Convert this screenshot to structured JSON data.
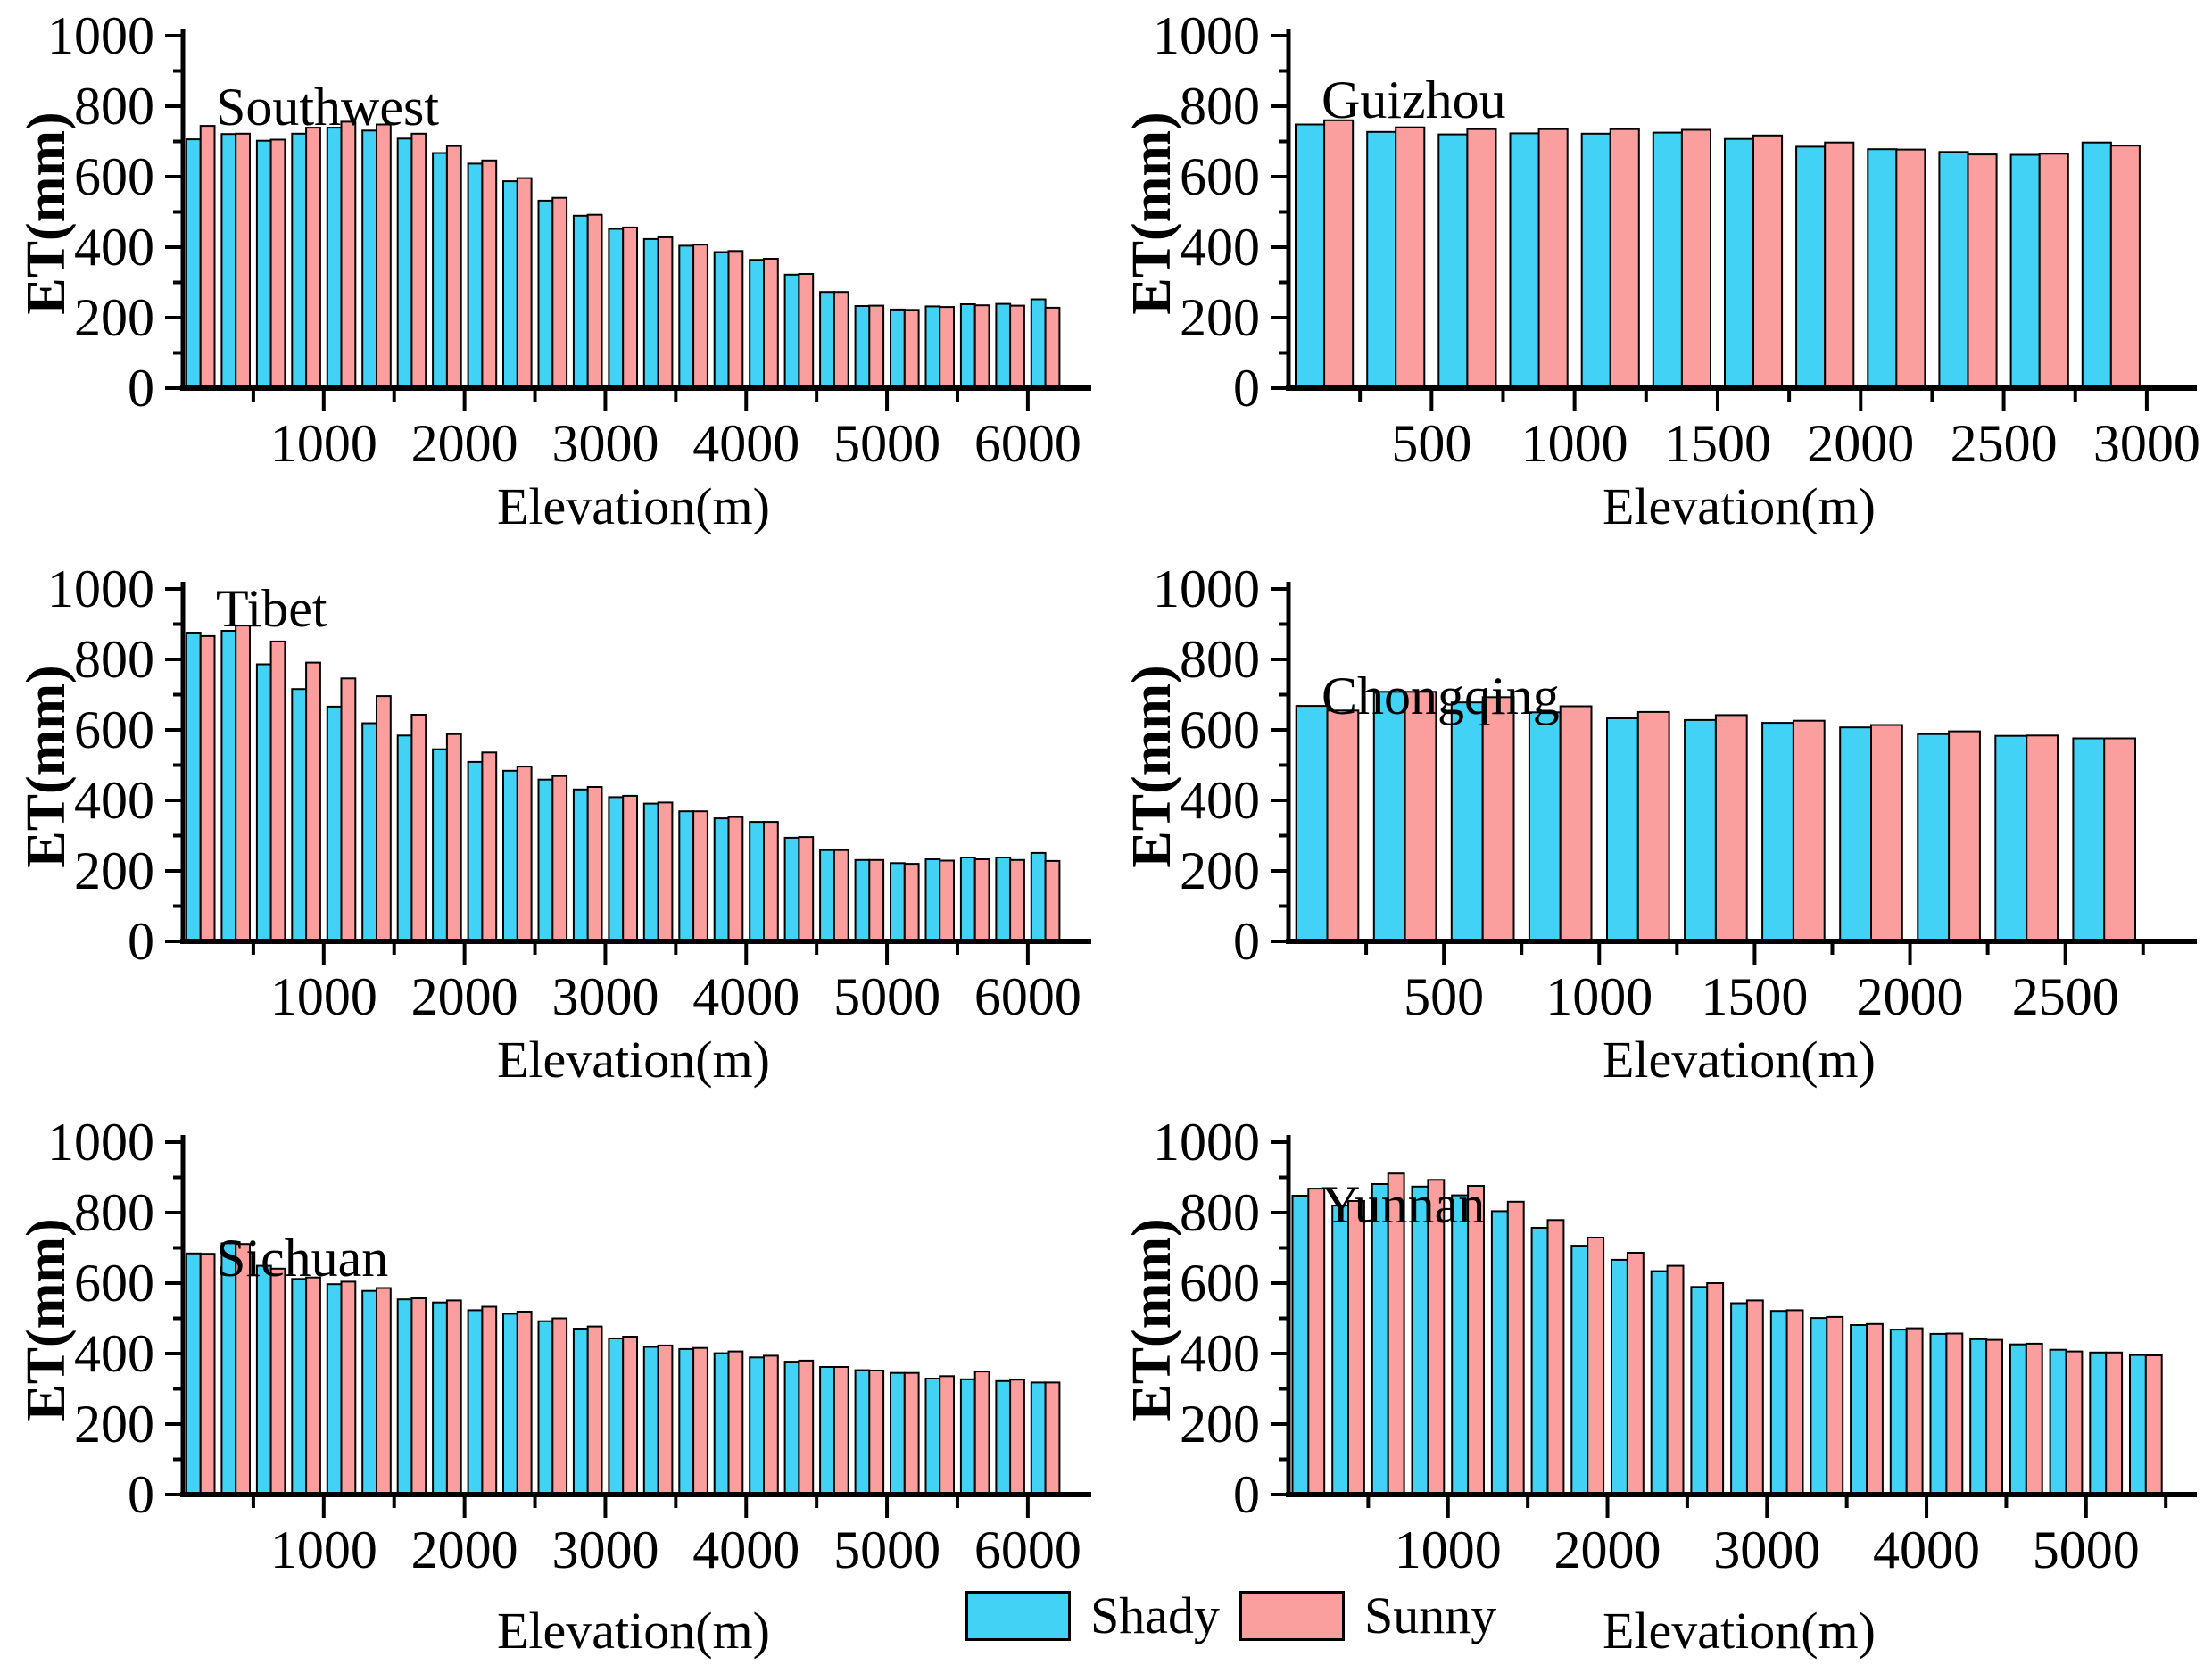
{
  "figure": {
    "background": "#ffffff",
    "axis_color": "#000000",
    "ylabel": "ET(mm)",
    "xlabel": "Elevation(m)"
  },
  "legend": {
    "items": [
      {
        "label": "Shady",
        "color": "#41d2f5"
      },
      {
        "label": "Sunny",
        "color": "#fb9e9e"
      }
    ]
  },
  "chart_data": {
    "type": "bar",
    "legend_position": "bottom-center",
    "grid": false,
    "panels": [
      {
        "title": "Southwest",
        "xlabel": "Elevation(m)",
        "ylabel": "ET(mm)",
        "type": "bar",
        "bin_width_m": 250,
        "xlim": [
          0,
          6400
        ],
        "ylim": [
          0,
          1000
        ],
        "yticks": [
          0,
          200,
          400,
          600,
          800,
          1000
        ],
        "xticks_major": [
          1000,
          2000,
          3000,
          4000,
          5000,
          6000
        ],
        "xtick_minor_step": 500,
        "elevation_bin_ends_m": [
          250,
          500,
          750,
          1000,
          1250,
          1500,
          1750,
          2000,
          2250,
          2500,
          2750,
          3000,
          3250,
          3500,
          3750,
          4000,
          4250,
          4500,
          4750,
          5000,
          5250,
          5500,
          5750,
          6000,
          6250
        ],
        "series": [
          {
            "name": "Shady",
            "color": "#41d2f5",
            "values": [
              706,
              721,
              702,
              722,
              739,
              731,
              708,
              667,
              637,
              587,
              532,
              489,
              452,
              423,
              404,
              386,
              364,
              322,
              273,
              233,
              223,
              232,
              238,
              239,
              252
            ]
          },
          {
            "name": "Sunny",
            "color": "#fb9e9e",
            "values": [
              744,
              722,
              705,
              739,
              756,
              748,
              722,
              687,
              646,
              596,
              540,
              492,
              456,
              428,
              407,
              389,
              367,
              324,
              273,
              234,
              222,
              230,
              235,
              234,
              228
            ]
          }
        ]
      },
      {
        "title": "Guizhou",
        "xlabel": "Elevation(m)",
        "ylabel": "ET(mm)",
        "type": "bar",
        "bin_width_m": 250,
        "xlim": [
          0,
          3150
        ],
        "ylim": [
          0,
          1000
        ],
        "yticks": [
          0,
          200,
          400,
          600,
          800,
          1000
        ],
        "xticks_major": [
          500,
          1000,
          1500,
          2000,
          2500,
          3000
        ],
        "xtick_minor_step": 250,
        "elevation_bin_ends_m": [
          250,
          500,
          750,
          1000,
          1250,
          1500,
          1750,
          2000,
          2250,
          2500,
          2750,
          3000
        ],
        "series": [
          {
            "name": "Shady",
            "color": "#41d2f5",
            "values": [
              748,
              727,
              720,
              723,
              722,
              725,
              707,
              685,
              678,
              670,
              662,
              697
            ]
          },
          {
            "name": "Sunny",
            "color": "#fb9e9e",
            "values": [
              760,
              740,
              735,
              735,
              735,
              733,
              717,
              697,
              677,
              663,
              665,
              688
            ]
          }
        ]
      },
      {
        "title": "Tibet",
        "xlabel": "Elevation(m)",
        "ylabel": "ET(mm)",
        "type": "bar",
        "bin_width_m": 250,
        "xlim": [
          0,
          6400
        ],
        "ylim": [
          0,
          1000
        ],
        "yticks": [
          0,
          200,
          400,
          600,
          800,
          1000
        ],
        "xticks_major": [
          1000,
          2000,
          3000,
          4000,
          5000,
          6000
        ],
        "xtick_minor_step": 500,
        "elevation_bin_ends_m": [
          250,
          500,
          750,
          1000,
          1250,
          1500,
          1750,
          2000,
          2250,
          2500,
          2750,
          3000,
          3250,
          3500,
          3750,
          4000,
          4250,
          4500,
          4750,
          5000,
          5250,
          5500,
          5750,
          6000,
          6250
        ],
        "series": [
          {
            "name": "Shady",
            "color": "#41d2f5",
            "values": [
              876,
              881,
              786,
              716,
              666,
              619,
              584,
              545,
              509,
              484,
              459,
              431,
              409,
              391,
              369,
              349,
              339,
              294,
              259,
              231,
              222,
              233,
              238,
              238,
              251
            ]
          },
          {
            "name": "Sunny",
            "color": "#fb9e9e",
            "values": [
              866,
              896,
              851,
              791,
              746,
              696,
              643,
              588,
              536,
              496,
              469,
              438,
              413,
              394,
              369,
              353,
              339,
              296,
              259,
              231,
              220,
              229,
              233,
              231,
              228
            ]
          }
        ]
      },
      {
        "title": "Chongqing",
        "xlabel": "Elevation(m)",
        "ylabel": "ET(mm)",
        "type": "bar",
        "bin_width_m": 250,
        "xlim": [
          0,
          2900
        ],
        "ylim": [
          0,
          1000
        ],
        "yticks": [
          0,
          200,
          400,
          600,
          800,
          1000
        ],
        "xticks_major": [
          500,
          1000,
          1500,
          2000,
          2500
        ],
        "xtick_minor_step": 250,
        "elevation_bin_ends_m": [
          250,
          500,
          750,
          1000,
          1250,
          1500,
          1750,
          2000,
          2250,
          2500,
          2750
        ],
        "series": [
          {
            "name": "Shady",
            "color": "#41d2f5",
            "values": [
              668,
              708,
              678,
              650,
              633,
              628,
              620,
              607,
              588,
              583,
              576
            ]
          },
          {
            "name": "Sunny",
            "color": "#fb9e9e",
            "values": [
              655,
              708,
              693,
              667,
              651,
              642,
              626,
              614,
              596,
              584,
              576
            ]
          }
        ]
      },
      {
        "title": "Sichuan",
        "xlabel": "Elevation(m)",
        "ylabel": "ET(mm)",
        "type": "bar",
        "bin_width_m": 250,
        "xlim": [
          0,
          6400
        ],
        "ylim": [
          0,
          1000
        ],
        "yticks": [
          0,
          200,
          400,
          600,
          800,
          1000
        ],
        "xticks_major": [
          1000,
          2000,
          3000,
          4000,
          5000,
          6000
        ],
        "xtick_minor_step": 500,
        "elevation_bin_ends_m": [
          250,
          500,
          750,
          1000,
          1250,
          1500,
          1750,
          2000,
          2250,
          2500,
          2750,
          3000,
          3250,
          3500,
          3750,
          4000,
          4250,
          4500,
          4750,
          5000,
          5250,
          5500,
          5750,
          6000,
          6250
        ],
        "series": [
          {
            "name": "Shady",
            "color": "#41d2f5",
            "values": [
              684,
              713,
              649,
              612,
              597,
              578,
              554,
              545,
              523,
              513,
              492,
              471,
              443,
              419,
              413,
              401,
              389,
              377,
              362,
              353,
              345,
              329,
              327,
              322,
              318
            ]
          },
          {
            "name": "Sunny",
            "color": "#fb9e9e",
            "values": [
              683,
              711,
              641,
              616,
              604,
              586,
              557,
              551,
              533,
              519,
              500,
              477,
              448,
              423,
              416,
              406,
              394,
              380,
              362,
              352,
              345,
              336,
              349,
              326,
              318
            ]
          }
        ]
      },
      {
        "title": "Yunnan",
        "xlabel": "Elevation(m)",
        "ylabel": "ET(mm)",
        "type": "bar",
        "bin_width_m": 250,
        "xlim": [
          0,
          5650
        ],
        "ylim": [
          0,
          1000
        ],
        "yticks": [
          0,
          200,
          400,
          600,
          800,
          1000
        ],
        "xticks_major": [
          1000,
          2000,
          3000,
          4000,
          5000
        ],
        "xtick_minor_step": 500,
        "elevation_bin_ends_m": [
          250,
          500,
          750,
          1000,
          1250,
          1500,
          1750,
          2000,
          2250,
          2500,
          2750,
          3000,
          3250,
          3500,
          3750,
          4000,
          4250,
          4500,
          4750,
          5000,
          5250,
          5500
        ],
        "series": [
          {
            "name": "Shady",
            "color": "#41d2f5",
            "values": [
              848,
              820,
              881,
              874,
              849,
              804,
              757,
              706,
              666,
              634,
              589,
              543,
              521,
              501,
              481,
              468,
              456,
              441,
              426,
              411,
              403,
              396
            ]
          },
          {
            "name": "Sunny",
            "color": "#fb9e9e",
            "values": [
              868,
              833,
              911,
              893,
              876,
              831,
              779,
              729,
              686,
              649,
              600,
              551,
              523,
              504,
              484,
              472,
              457,
              439,
              428,
              406,
              403,
              395
            ]
          }
        ]
      }
    ]
  }
}
